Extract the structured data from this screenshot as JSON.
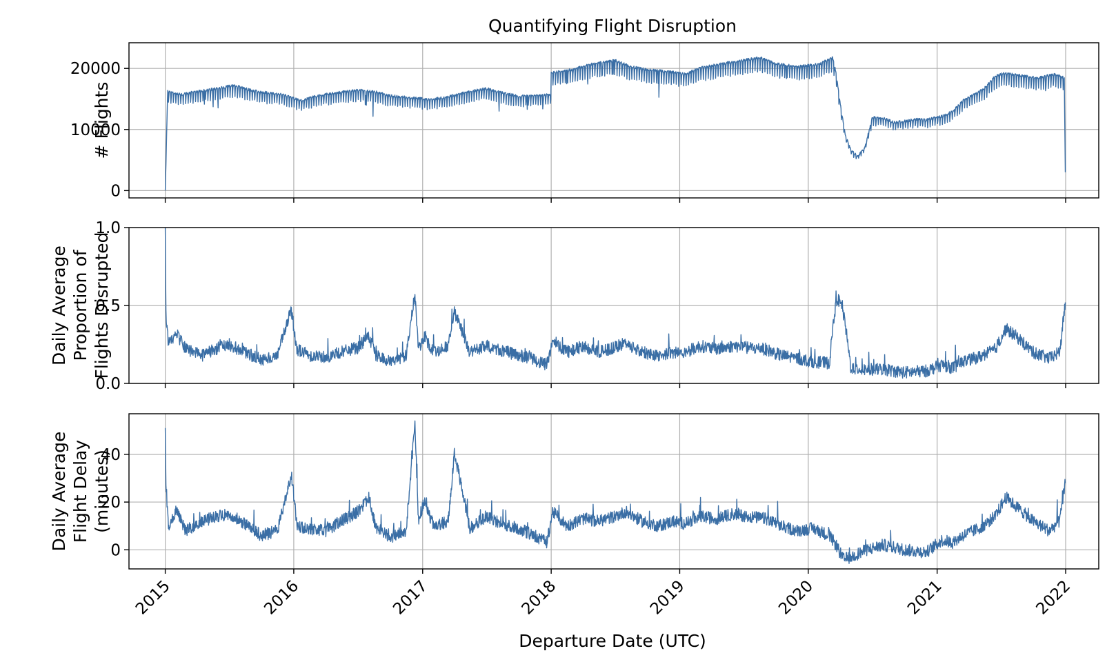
{
  "chart_data": {
    "type": "line",
    "title": "Quantifying Flight Disruption",
    "xlabel": "Departure Date (UTC)",
    "x_ticks": [
      "2015",
      "2016",
      "2017",
      "2018",
      "2019",
      "2020",
      "2021",
      "2022"
    ],
    "x_range": [
      "2014-09-20",
      "2022-04-05"
    ],
    "line_color": "#3a6ea5",
    "grid": true,
    "panels": [
      {
        "id": "flights",
        "ylabel_lines": [
          "# Flights"
        ],
        "ylim": [
          -1200,
          24200
        ],
        "y_ticks": [
          0,
          10000,
          20000
        ],
        "y_tick_labels": [
          "0",
          "10000",
          "20000"
        ],
        "series": {
          "x": [
            "2015-01-01",
            "2015-01-08",
            "2015-02-15",
            "2015-04-01",
            "2015-06-01",
            "2015-07-15",
            "2015-09-01",
            "2015-10-15",
            "2015-12-01",
            "2016-01-20",
            "2016-03-01",
            "2016-05-01",
            "2016-07-01",
            "2016-08-15",
            "2016-10-01",
            "2016-12-01",
            "2017-01-20",
            "2017-03-01",
            "2017-05-01",
            "2017-07-01",
            "2017-08-15",
            "2017-10-01",
            "2017-12-31",
            "2018-01-01",
            "2018-03-01",
            "2018-05-01",
            "2018-07-01",
            "2018-08-15",
            "2018-10-01",
            "2018-12-01",
            "2019-01-15",
            "2019-03-01",
            "2019-05-01",
            "2019-07-01",
            "2019-08-15",
            "2019-10-01",
            "2019-12-01",
            "2020-02-01",
            "2020-03-10",
            "2020-03-20",
            "2020-04-01",
            "2020-04-15",
            "2020-05-01",
            "2020-05-20",
            "2020-06-10",
            "2020-07-01",
            "2020-08-01",
            "2020-09-01",
            "2020-10-01",
            "2020-11-01",
            "2020-12-01",
            "2021-01-15",
            "2021-02-15",
            "2021-03-15",
            "2021-04-15",
            "2021-05-15",
            "2021-06-15",
            "2021-07-15",
            "2021-09-01",
            "2021-10-15",
            "2021-12-01",
            "2021-12-28",
            "2021-12-31"
          ],
          "values": [
            0,
            16000,
            15500,
            16000,
            16500,
            17000,
            16200,
            15800,
            15500,
            14500,
            15200,
            15800,
            16200,
            16000,
            15300,
            15000,
            14700,
            15000,
            15800,
            16500,
            15800,
            15200,
            15500,
            19000,
            19500,
            20500,
            21000,
            20000,
            19500,
            19200,
            18800,
            19800,
            20500,
            21000,
            21500,
            20500,
            20000,
            20400,
            21500,
            19000,
            14000,
            9000,
            6500,
            5500,
            7000,
            11800,
            11700,
            11000,
            11200,
            11500,
            11400,
            12000,
            12800,
            14500,
            15500,
            16500,
            18500,
            19000,
            18500,
            18200,
            18800,
            18200,
            3000
          ]
        }
      },
      {
        "id": "proportion",
        "ylabel_lines": [
          "Daily Average",
          "Proportion of",
          "Flights Disrupted"
        ],
        "ylim": [
          0,
          1.0
        ],
        "y_ticks": [
          0.0,
          0.5,
          1.0
        ],
        "y_tick_labels": [
          "0.0",
          "0.5",
          "1.0"
        ],
        "series": {
          "x": [
            "2015-01-01",
            "2015-01-03",
            "2015-01-10",
            "2015-02-01",
            "2015-03-01",
            "2015-04-15",
            "2015-06-01",
            "2015-07-01",
            "2015-08-15",
            "2015-10-01",
            "2015-11-15",
            "2015-12-25",
            "2016-01-10",
            "2016-02-15",
            "2016-04-01",
            "2016-05-15",
            "2016-07-01",
            "2016-08-01",
            "2016-08-20",
            "2016-10-01",
            "2016-11-15",
            "2016-12-10",
            "2016-12-20",
            "2017-01-05",
            "2017-02-01",
            "2017-03-15",
            "2017-04-01",
            "2017-05-15",
            "2017-07-01",
            "2017-08-15",
            "2017-10-01",
            "2017-11-15",
            "2017-12-20",
            "2018-01-05",
            "2018-02-15",
            "2018-04-01",
            "2018-05-15",
            "2018-07-01",
            "2018-08-01",
            "2018-09-15",
            "2018-11-01",
            "2018-12-15",
            "2019-01-15",
            "2019-03-01",
            "2019-04-15",
            "2019-06-01",
            "2019-07-15",
            "2019-09-01",
            "2019-10-15",
            "2019-12-01",
            "2020-01-15",
            "2020-03-01",
            "2020-03-15",
            "2020-03-25",
            "2020-04-05",
            "2020-04-15",
            "2020-05-01",
            "2020-06-01",
            "2020-08-01",
            "2020-10-01",
            "2020-12-01",
            "2021-01-15",
            "2021-02-15",
            "2021-03-15",
            "2021-05-01",
            "2021-06-15",
            "2021-07-15",
            "2021-08-15",
            "2021-10-01",
            "2021-11-15",
            "2021-12-15",
            "2021-12-31"
          ],
          "values": [
            1.0,
            0.45,
            0.25,
            0.32,
            0.22,
            0.18,
            0.23,
            0.25,
            0.2,
            0.15,
            0.18,
            0.47,
            0.22,
            0.18,
            0.17,
            0.2,
            0.23,
            0.3,
            0.18,
            0.14,
            0.18,
            0.57,
            0.22,
            0.3,
            0.2,
            0.24,
            0.46,
            0.2,
            0.24,
            0.21,
            0.18,
            0.15,
            0.12,
            0.28,
            0.2,
            0.24,
            0.2,
            0.23,
            0.26,
            0.2,
            0.18,
            0.2,
            0.2,
            0.24,
            0.22,
            0.24,
            0.23,
            0.22,
            0.18,
            0.16,
            0.14,
            0.13,
            0.45,
            0.54,
            0.5,
            0.38,
            0.1,
            0.09,
            0.09,
            0.07,
            0.08,
            0.12,
            0.1,
            0.14,
            0.17,
            0.22,
            0.35,
            0.3,
            0.2,
            0.16,
            0.2,
            0.52
          ]
        }
      },
      {
        "id": "delay",
        "ylabel_lines": [
          "Daily Average",
          "Flight Delay",
          "(minutes)"
        ],
        "ylim": [
          -8,
          57
        ],
        "y_ticks": [
          0,
          20,
          40
        ],
        "y_tick_labels": [
          "0",
          "20",
          "40"
        ],
        "series": {
          "x": [
            "2015-01-01",
            "2015-01-03",
            "2015-01-10",
            "2015-02-01",
            "2015-03-01",
            "2015-04-15",
            "2015-06-01",
            "2015-07-01",
            "2015-08-15",
            "2015-10-01",
            "2015-11-15",
            "2015-12-25",
            "2016-01-10",
            "2016-02-15",
            "2016-04-01",
            "2016-05-15",
            "2016-07-01",
            "2016-08-01",
            "2016-08-20",
            "2016-10-01",
            "2016-11-15",
            "2016-12-10",
            "2016-12-20",
            "2017-01-05",
            "2017-02-01",
            "2017-03-15",
            "2017-04-01",
            "2017-05-15",
            "2017-07-01",
            "2017-08-15",
            "2017-10-01",
            "2017-11-15",
            "2017-12-20",
            "2018-01-05",
            "2018-02-15",
            "2018-04-01",
            "2018-05-15",
            "2018-07-01",
            "2018-08-01",
            "2018-09-15",
            "2018-11-01",
            "2018-12-15",
            "2019-01-15",
            "2019-03-01",
            "2019-04-15",
            "2019-06-01",
            "2019-07-15",
            "2019-09-01",
            "2019-10-15",
            "2019-12-01",
            "2020-01-15",
            "2020-03-01",
            "2020-03-20",
            "2020-04-10",
            "2020-05-01",
            "2020-06-15",
            "2020-08-01",
            "2020-10-01",
            "2020-12-01",
            "2021-01-15",
            "2021-02-15",
            "2021-03-15",
            "2021-05-01",
            "2021-06-15",
            "2021-07-15",
            "2021-08-15",
            "2021-10-01",
            "2021-11-15",
            "2021-12-15",
            "2021-12-31"
          ],
          "values": [
            51,
            28,
            10,
            16,
            8,
            12,
            14,
            15,
            11,
            6,
            8,
            32,
            10,
            9,
            8,
            12,
            16,
            22,
            10,
            5,
            8,
            53,
            12,
            20,
            10,
            12,
            41,
            9,
            14,
            11,
            9,
            6,
            3,
            16,
            10,
            13,
            12,
            14,
            16,
            12,
            10,
            12,
            11,
            14,
            13,
            15,
            14,
            13,
            10,
            8,
            9,
            6,
            2,
            -4,
            -3,
            0,
            2,
            0,
            -1,
            4,
            3,
            6,
            9,
            14,
            22,
            18,
            12,
            8,
            12,
            28
          ]
        }
      }
    ]
  }
}
